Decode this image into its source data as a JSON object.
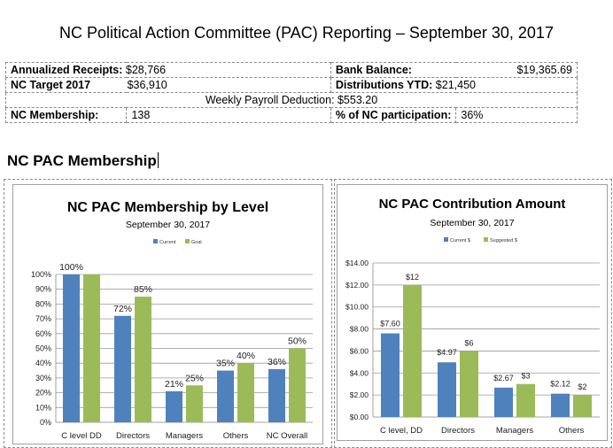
{
  "page_title": "NC Political Action Committee (PAC) Reporting – September 30, 2017",
  "summary": {
    "annualized_receipts_label": "Annualized Receipts:",
    "annualized_receipts_value": "$28,766",
    "bank_balance_label": "Bank Balance:",
    "bank_balance_value": "$19,365.69",
    "nc_target_label": "NC Target 2017",
    "nc_target_value": "$36,910",
    "distributions_label": "Distributions YTD:",
    "distributions_value": "$21,450",
    "payroll_label": "Weekly Payroll Deduction:",
    "payroll_value": "$553.20",
    "membership_label": "NC Membership:",
    "membership_value": "138",
    "participation_label": "% of NC participation:",
    "participation_value": "36%"
  },
  "section_title": "NC PAC Membership",
  "colors": {
    "series1": "#4F81BD",
    "series2": "#9BBB59"
  },
  "chart_data": [
    {
      "type": "bar",
      "title": "NC PAC Membership by Level",
      "subtitle": "September 30, 2017",
      "categories": [
        "C level DD",
        "Directors",
        "Managers",
        "Others",
        "NC Overall"
      ],
      "series": [
        {
          "name": "Current",
          "values": [
            100,
            72,
            21,
            35,
            36
          ],
          "labels": [
            "100%",
            "72%",
            "21%",
            "35%",
            "36%"
          ]
        },
        {
          "name": "Goal",
          "values": [
            100,
            85,
            25,
            40,
            50
          ],
          "labels": [
            "",
            "85%",
            "25%",
            "40%",
            "50%"
          ]
        }
      ],
      "ylim": [
        0,
        100
      ],
      "yticks": [
        "0%",
        "10%",
        "20%",
        "30%",
        "40%",
        "50%",
        "60%",
        "70%",
        "80%",
        "90%",
        "100%"
      ],
      "legend": "top",
      "grid": true
    },
    {
      "type": "bar",
      "title": "NC PAC Contribution Amount",
      "subtitle": "September 30, 2017",
      "categories": [
        "C level, DD",
        "Directors",
        "Managers",
        "Others"
      ],
      "series": [
        {
          "name": "Current $",
          "values": [
            7.6,
            4.97,
            2.67,
            2.12
          ],
          "labels": [
            "$7.60",
            "$4.97",
            "$2.67",
            "$2.12"
          ]
        },
        {
          "name": "Suggested $",
          "values": [
            12,
            6,
            3,
            2
          ],
          "labels": [
            "$12",
            "$6",
            "$3",
            "$2"
          ]
        }
      ],
      "ylim": [
        0,
        14
      ],
      "yticks": [
        "$0.00",
        "$2.00",
        "$4.00",
        "$6.00",
        "$8.00",
        "$10.00",
        "$12.00",
        "$14.00"
      ],
      "legend": "top",
      "grid": true
    }
  ]
}
